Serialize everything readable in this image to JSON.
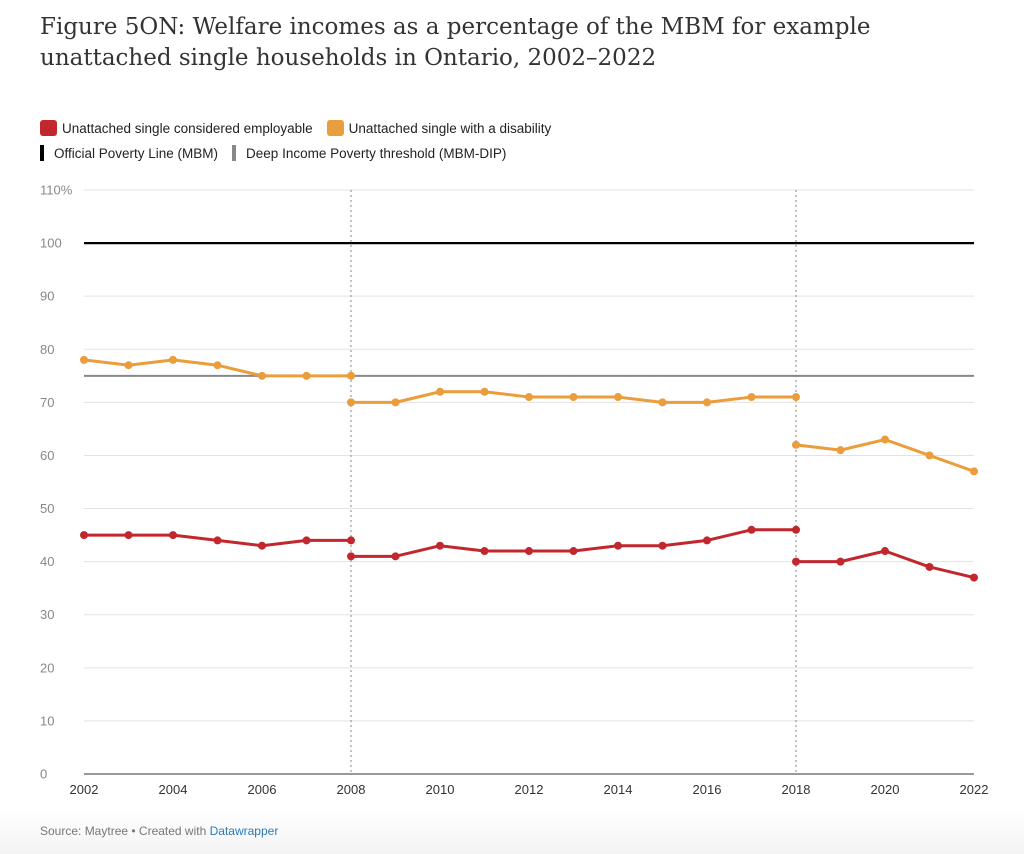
{
  "title": "Figure 5ON: Welfare incomes as a percentage of the MBM for example unattached single households in Ontario, 2002–2022",
  "legend": {
    "employable": {
      "label": "Unattached single considered employable",
      "color": "#c1272d"
    },
    "disability": {
      "label": "Unattached single with a disability",
      "color": "#eb9c3b"
    },
    "mbm": {
      "label": "Official Poverty Line (MBM)",
      "color": "#000000"
    },
    "dip": {
      "label": "Deep Income Poverty threshold (MBM-DIP)",
      "color": "#888888"
    }
  },
  "footer": {
    "source_text": "Source: Maytree • Created with ",
    "link_text": "Datawrapper"
  },
  "chart_data": {
    "type": "line",
    "title": "Figure 5ON: Welfare incomes as a percentage of the MBM for example unattached single households in Ontario, 2002–2022",
    "xlabel": "",
    "ylabel": "",
    "xlim": [
      2002,
      2022
    ],
    "ylim": [
      0,
      110
    ],
    "y_ticks": [
      0,
      10,
      20,
      30,
      40,
      50,
      60,
      70,
      80,
      90,
      100,
      110
    ],
    "y_tick_labels": [
      "0",
      "10",
      "20",
      "30",
      "40",
      "50",
      "60",
      "70",
      "80",
      "90",
      "100",
      "110%"
    ],
    "x_ticks": [
      2002,
      2004,
      2006,
      2008,
      2010,
      2012,
      2014,
      2016,
      2018,
      2020,
      2022
    ],
    "x_tick_labels": [
      "2002",
      "2004",
      "2006",
      "2008",
      "2010",
      "2012",
      "2014",
      "2016",
      "2018",
      "2020",
      "2022"
    ],
    "grid": true,
    "methodology_breaks": [
      2008,
      2018
    ],
    "reference_lines": [
      {
        "name": "Official Poverty Line (MBM)",
        "y": 100,
        "color": "#000000"
      },
      {
        "name": "Deep Income Poverty threshold (MBM-DIP)",
        "y": 75,
        "color": "#888888"
      }
    ],
    "series": [
      {
        "name": "Unattached single considered employable",
        "color": "#c1272d",
        "segments": [
          {
            "x": [
              2002,
              2003,
              2004,
              2005,
              2006,
              2007,
              2008
            ],
            "y": [
              45,
              45,
              45,
              44,
              43,
              44,
              44
            ]
          },
          {
            "x": [
              2008,
              2009,
              2010,
              2011,
              2012,
              2013,
              2014,
              2015,
              2016,
              2017,
              2018
            ],
            "y": [
              41,
              41,
              43,
              42,
              42,
              42,
              43,
              43,
              44,
              46,
              46
            ]
          },
          {
            "x": [
              2018,
              2019,
              2020,
              2021,
              2022
            ],
            "y": [
              40,
              40,
              42,
              39,
              37
            ]
          }
        ]
      },
      {
        "name": "Unattached single with a disability",
        "color": "#eb9c3b",
        "segments": [
          {
            "x": [
              2002,
              2003,
              2004,
              2005,
              2006,
              2007,
              2008
            ],
            "y": [
              78,
              77,
              78,
              77,
              75,
              75,
              75
            ]
          },
          {
            "x": [
              2008,
              2009,
              2010,
              2011,
              2012,
              2013,
              2014,
              2015,
              2016,
              2017,
              2018
            ],
            "y": [
              70,
              70,
              72,
              72,
              71,
              71,
              71,
              70,
              70,
              71,
              71
            ]
          },
          {
            "x": [
              2018,
              2019,
              2020,
              2021,
              2022
            ],
            "y": [
              62,
              61,
              63,
              60,
              57
            ]
          }
        ]
      }
    ]
  }
}
